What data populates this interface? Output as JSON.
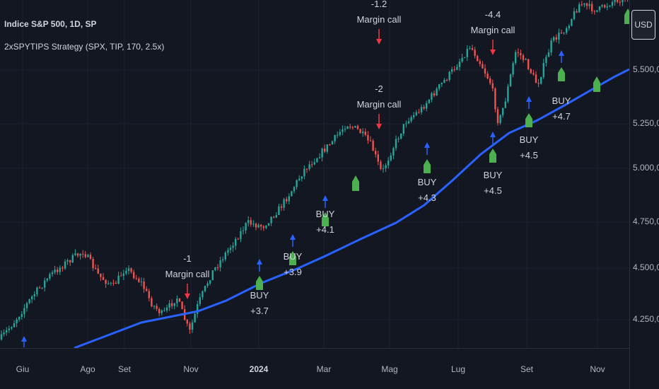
{
  "legend": {
    "symbol_title": "Indice S&P 500, 1D, SP",
    "strategy": "2xSPYTIPS Strategy (SPX, TIP, 170, 2.5x)"
  },
  "currency_button": "USD",
  "price_scale": [
    "5.500,00",
    "5.250,00",
    "5.000,00",
    "4.750,00",
    "4.500,00",
    "4.250,00"
  ],
  "time_scale": [
    {
      "label": "Giu",
      "bold": false
    },
    {
      "label": "Ago",
      "bold": false
    },
    {
      "label": "Set",
      "bold": false
    },
    {
      "label": "Nov",
      "bold": false
    },
    {
      "label": "2024",
      "bold": true
    },
    {
      "label": "Mar",
      "bold": false
    },
    {
      "label": "Mag",
      "bold": false
    },
    {
      "label": "Lug",
      "bold": false
    },
    {
      "label": "Set",
      "bold": false
    },
    {
      "label": "Nov",
      "bold": false
    }
  ],
  "signals": [
    {
      "type": "sell",
      "line1": "-1",
      "line2": "Margin call"
    },
    {
      "type": "buy",
      "line1": "BUY",
      "line2": "+3.7"
    },
    {
      "type": "buy",
      "line1": "BUY",
      "line2": "+3.9"
    },
    {
      "type": "buy",
      "line1": "BUY",
      "line2": "+4.1"
    },
    {
      "type": "sell",
      "line1": "-1.2",
      "line2": "Margin call"
    },
    {
      "type": "sell",
      "line1": "-2",
      "line2": "Margin call"
    },
    {
      "type": "buy",
      "line1": "BUY",
      "line2": "+4.3"
    },
    {
      "type": "sell",
      "line1": "-4.4",
      "line2": "Margin call"
    },
    {
      "type": "buy",
      "line1": "BUY",
      "line2": "+4.5"
    },
    {
      "type": "buy",
      "line1": "BUY",
      "line2": "+4.5"
    },
    {
      "type": "buy",
      "line1": "BUY",
      "line2": "+4.7"
    }
  ],
  "colors": {
    "background": "#131722",
    "grid": "#1e222d",
    "candle_up": "#26a69a",
    "candle_down": "#ef5350",
    "moving_average": "#2962ff",
    "buy_shape": "#4caf50",
    "arrow_up": "#2962ff",
    "arrow_down": "#f23645"
  }
}
